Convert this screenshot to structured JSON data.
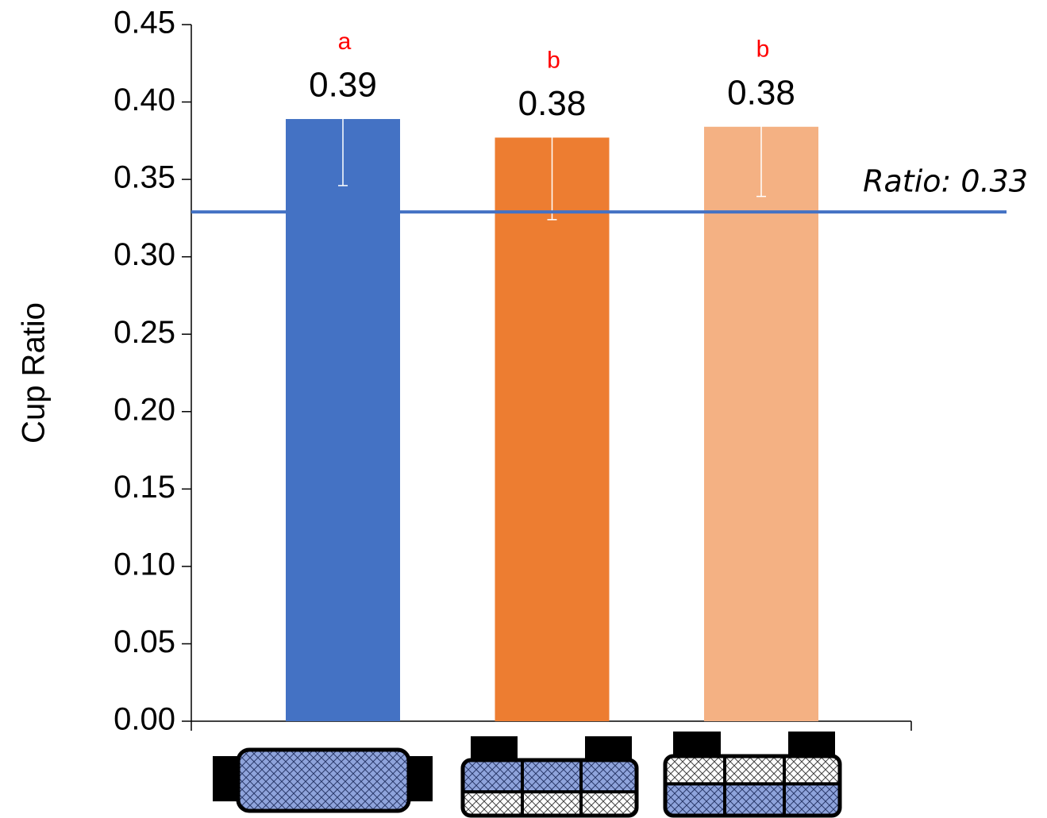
{
  "chart_data": {
    "type": "bar",
    "y_label": "Cup Ratio",
    "categories": [
      null,
      null,
      null
    ],
    "values": [
      0.389,
      0.377,
      0.384
    ],
    "value_labels": [
      "0.39",
      "0.38",
      "0.38"
    ],
    "errors": [
      0.043,
      0.053,
      0.045
    ],
    "colors": [
      "#4472c4",
      "#ed7d31",
      "#f4b183"
    ],
    "significance_labels": [
      "a",
      "b",
      "b"
    ],
    "reference_line": {
      "value": 0.329,
      "label": "Ratio: 0.33",
      "color": "#4472c4"
    },
    "ylim": [
      0,
      0.45
    ],
    "yticks": [
      {
        "value": 0,
        "label": "0.00"
      },
      0.05,
      {
        "value": 0.1,
        "label": "0.10"
      },
      0.15,
      {
        "value": 0.2,
        "label": "0.20"
      },
      0.25,
      {
        "value": 0.3,
        "label": "0.30"
      },
      0.35,
      {
        "value": 0.4,
        "label": "0.40"
      },
      0.45
    ],
    "grid": false
  }
}
